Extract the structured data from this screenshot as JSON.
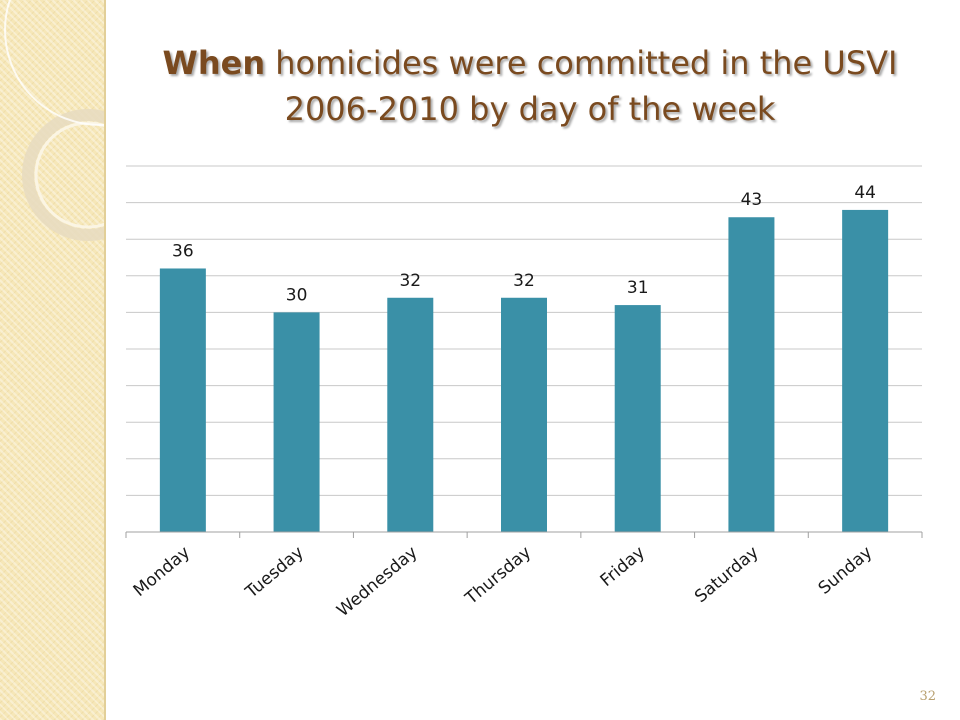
{
  "slide": {
    "title_bold": "When",
    "title_rest": " homicides were committed in the USVI 2006-2010 by day of the week",
    "page_number": "32"
  },
  "colors": {
    "bar": "#3a90a7",
    "grid": "#c8c8c8",
    "title": "#7a4a1f",
    "sidebar": "#f6e7b8"
  },
  "chart_data": {
    "type": "bar",
    "title": "When homicides were committed in the USVI 2006-2010 by day of the week",
    "xlabel": "",
    "ylabel": "",
    "categories": [
      "Monday",
      "Tuesday",
      "Wednesday",
      "Thursday",
      "Friday",
      "Saturday",
      "Sunday"
    ],
    "values": [
      36,
      30,
      32,
      32,
      31,
      43,
      44
    ],
    "ylim": [
      0,
      50
    ],
    "grid": true,
    "legend": "none"
  }
}
